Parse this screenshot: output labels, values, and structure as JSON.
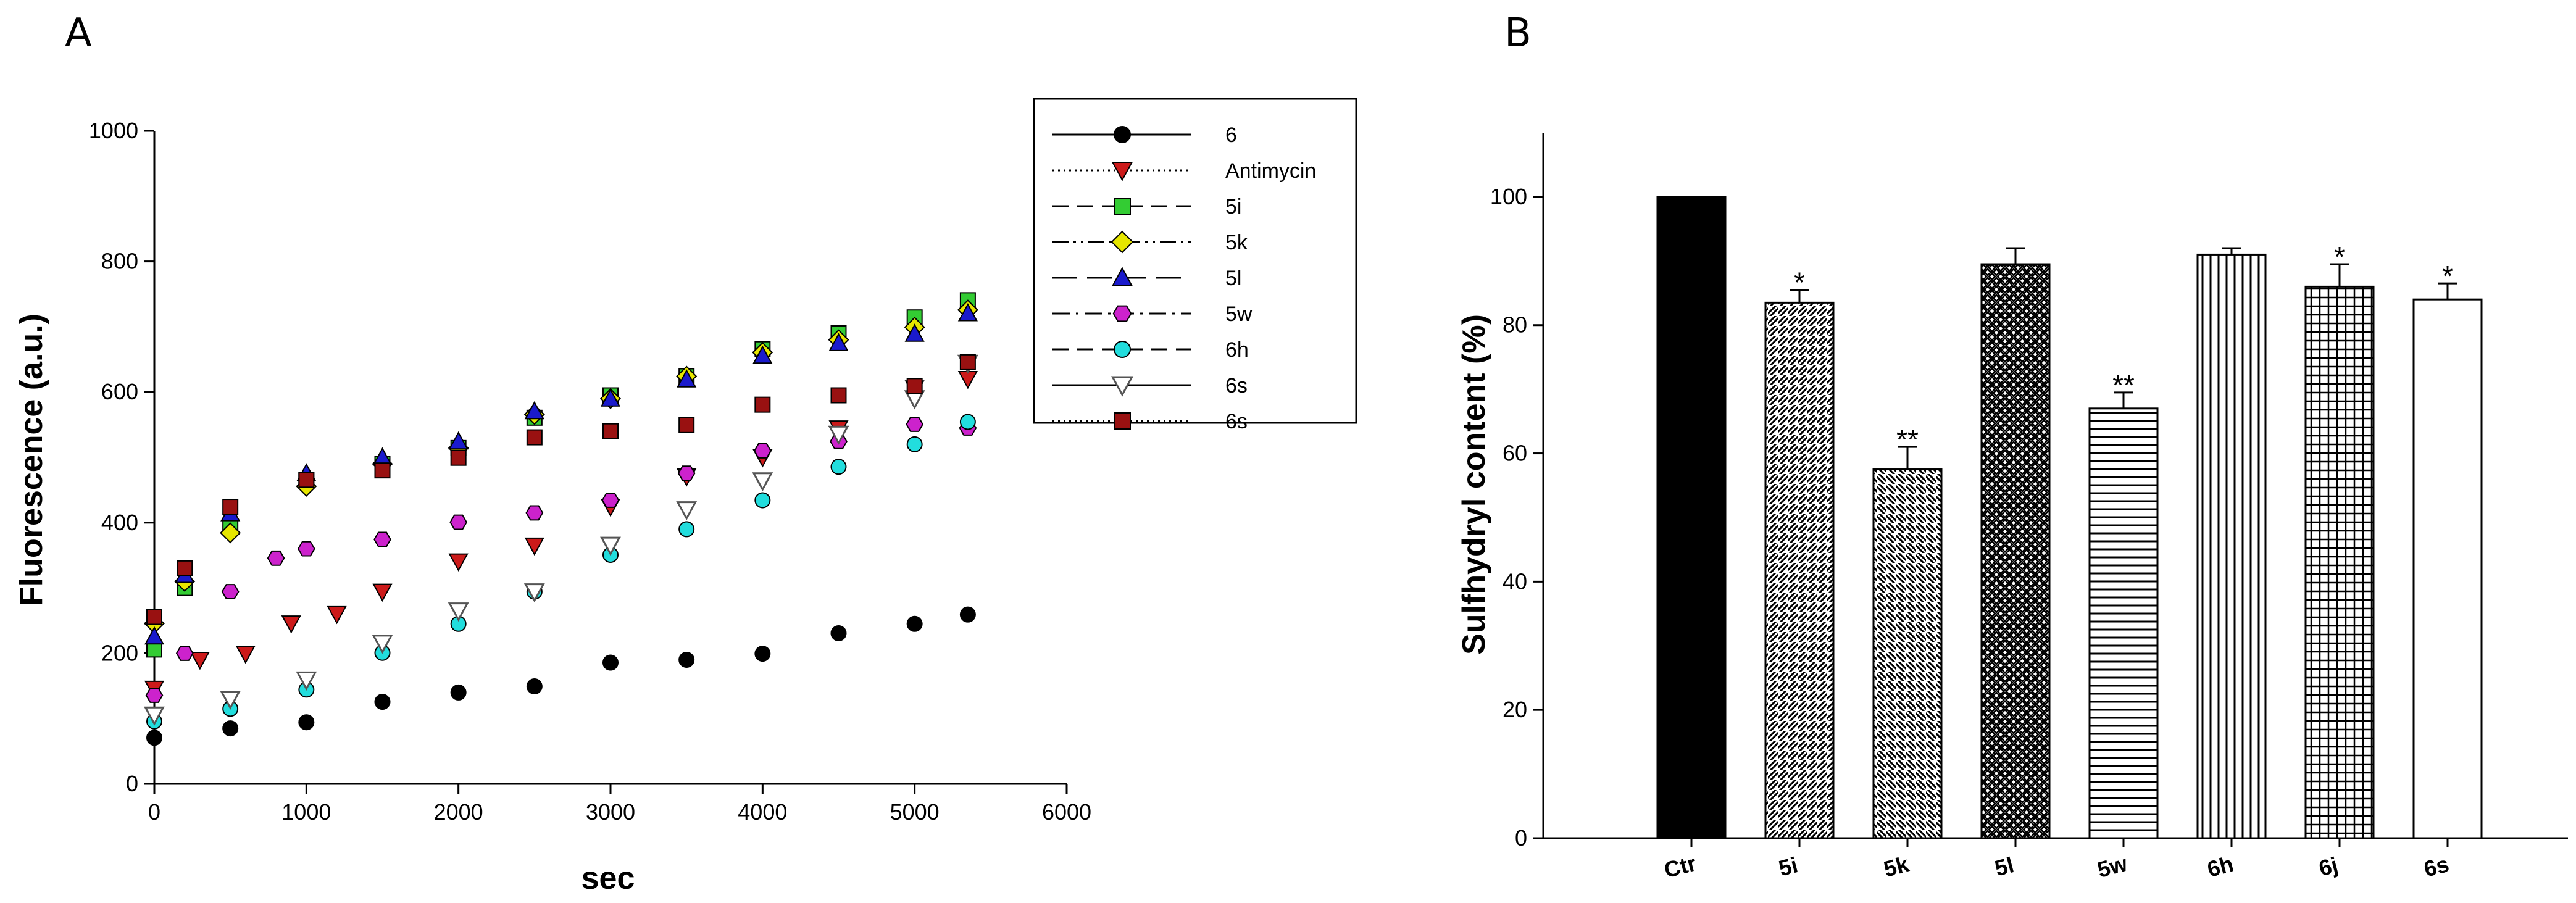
{
  "panels": {
    "a_letter": "A",
    "b_letter": "B"
  },
  "chart_data": [
    {
      "id": "A",
      "type": "scatter",
      "title": "",
      "xlabel": "sec",
      "ylabel": "Fluorescence (a.u.)",
      "xlim": [
        0,
        6000
      ],
      "ylim": [
        0,
        1000
      ],
      "xticks": [
        "0",
        "1000",
        "2000",
        "3000",
        "4000",
        "5000",
        "6000"
      ],
      "yticks": [
        "0",
        "200",
        "400",
        "600",
        "800",
        "1000"
      ],
      "legend_position": "top-right",
      "series": [
        {
          "name": "6",
          "line": "solid",
          "marker": "circle",
          "color": "#000000",
          "x": [
            0,
            500,
            1000,
            1500,
            2000,
            2500,
            3000,
            3500,
            4000,
            4500,
            5000,
            5350
          ],
          "y": [
            65,
            85,
            100,
            120,
            140,
            155,
            180,
            190,
            205,
            225,
            245,
            265
          ]
        },
        {
          "name": "Antimycin",
          "line": "dotted",
          "marker": "triangle-down",
          "color": "#cc1a1a",
          "x": [
            0,
            300,
            600,
            900,
            1200,
            1500,
            2000,
            2500,
            3000,
            3500,
            4000,
            4500,
            5000,
            5350
          ],
          "y": [
            140,
            190,
            205,
            240,
            260,
            300,
            335,
            365,
            430,
            465,
            500,
            550,
            600,
            620
          ]
        },
        {
          "name": "5i",
          "line": "dashed",
          "marker": "square",
          "color": "#33cc33",
          "x": [
            0,
            200,
            500,
            1000,
            1500,
            2000,
            2500,
            3000,
            3500,
            4000,
            4500,
            5000,
            5350
          ],
          "y": [
            200,
            300,
            400,
            460,
            490,
            520,
            555,
            595,
            630,
            660,
            690,
            720,
            735
          ]
        },
        {
          "name": "5k",
          "line": "dash-dot-dot",
          "marker": "diamond",
          "color": "#e6e600",
          "x": [
            0,
            200,
            500,
            1000,
            1500,
            2000,
            2500,
            3000,
            3500,
            4000,
            4500,
            5000,
            5350
          ],
          "y": [
            240,
            310,
            390,
            450,
            490,
            520,
            560,
            590,
            630,
            655,
            680,
            705,
            720
          ]
        },
        {
          "name": "5l",
          "line": "long-dash",
          "marker": "triangle-up",
          "color": "#1a1acc",
          "x": [
            0,
            200,
            500,
            1000,
            1500,
            2000,
            2500,
            3000,
            3500,
            4000,
            4500,
            5000,
            5350
          ],
          "y": [
            220,
            320,
            420,
            470,
            500,
            530,
            565,
            590,
            625,
            650,
            675,
            695,
            715
          ]
        },
        {
          "name": "5w",
          "line": "dash-dot",
          "marker": "hexagon",
          "color": "#cc22cc",
          "x": [
            0,
            200,
            500,
            800,
            1000,
            1500,
            2000,
            2500,
            3000,
            3500,
            4000,
            4500,
            5000,
            5350
          ],
          "y": [
            130,
            200,
            300,
            340,
            360,
            380,
            395,
            415,
            440,
            470,
            510,
            530,
            545,
            545
          ]
        },
        {
          "name": "6h",
          "line": "dashed",
          "marker": "circle",
          "color": "#22dddd",
          "x": [
            0,
            500,
            1000,
            1500,
            2000,
            2500,
            3000,
            3500,
            4000,
            4500,
            5000,
            5350
          ],
          "y": [
            90,
            115,
            150,
            195,
            245,
            300,
            345,
            390,
            440,
            480,
            520,
            560
          ]
        },
        {
          "name": "6s",
          "line": "solid",
          "marker": "triangle-down-open",
          "color": "#888888",
          "x": [
            0,
            500,
            1000,
            1500,
            2000,
            2500,
            3000,
            3500,
            4000,
            4500,
            5000,
            5350
          ],
          "y": [
            100,
            130,
            165,
            210,
            265,
            300,
            360,
            420,
            470,
            530,
            590,
            650
          ]
        },
        {
          "name": "6s",
          "line": "dotted",
          "marker": "square",
          "color": "#991111",
          "x": [
            0,
            200,
            500,
            1000,
            1500,
            2000,
            2500,
            3000,
            3500,
            4000,
            4500,
            5000,
            5350
          ],
          "y": [
            250,
            330,
            430,
            460,
            480,
            505,
            525,
            540,
            555,
            575,
            595,
            615,
            640
          ]
        }
      ]
    },
    {
      "id": "B",
      "type": "bar",
      "title": "",
      "xlabel": "",
      "ylabel": "Sulfhydryl content (%)",
      "ylim": [
        0,
        110
      ],
      "yticks": [
        "0",
        "20",
        "40",
        "60",
        "80",
        "100"
      ],
      "categories": [
        "Ctr",
        "5i",
        "5k",
        "5l",
        "5w",
        "6h",
        "6j",
        "6s"
      ],
      "values": [
        100,
        83.5,
        57.5,
        89.5,
        67,
        91,
        86,
        84
      ],
      "errors": [
        0,
        2,
        3.5,
        2.5,
        2.5,
        1,
        3.5,
        2.5
      ],
      "significance": [
        "",
        "*",
        "**",
        "",
        "**",
        "",
        "*",
        "*"
      ],
      "patterns": [
        "solid",
        "diag-right",
        "diag-left",
        "crosshatch",
        "horizontal",
        "vertical",
        "grid",
        "none"
      ]
    }
  ]
}
